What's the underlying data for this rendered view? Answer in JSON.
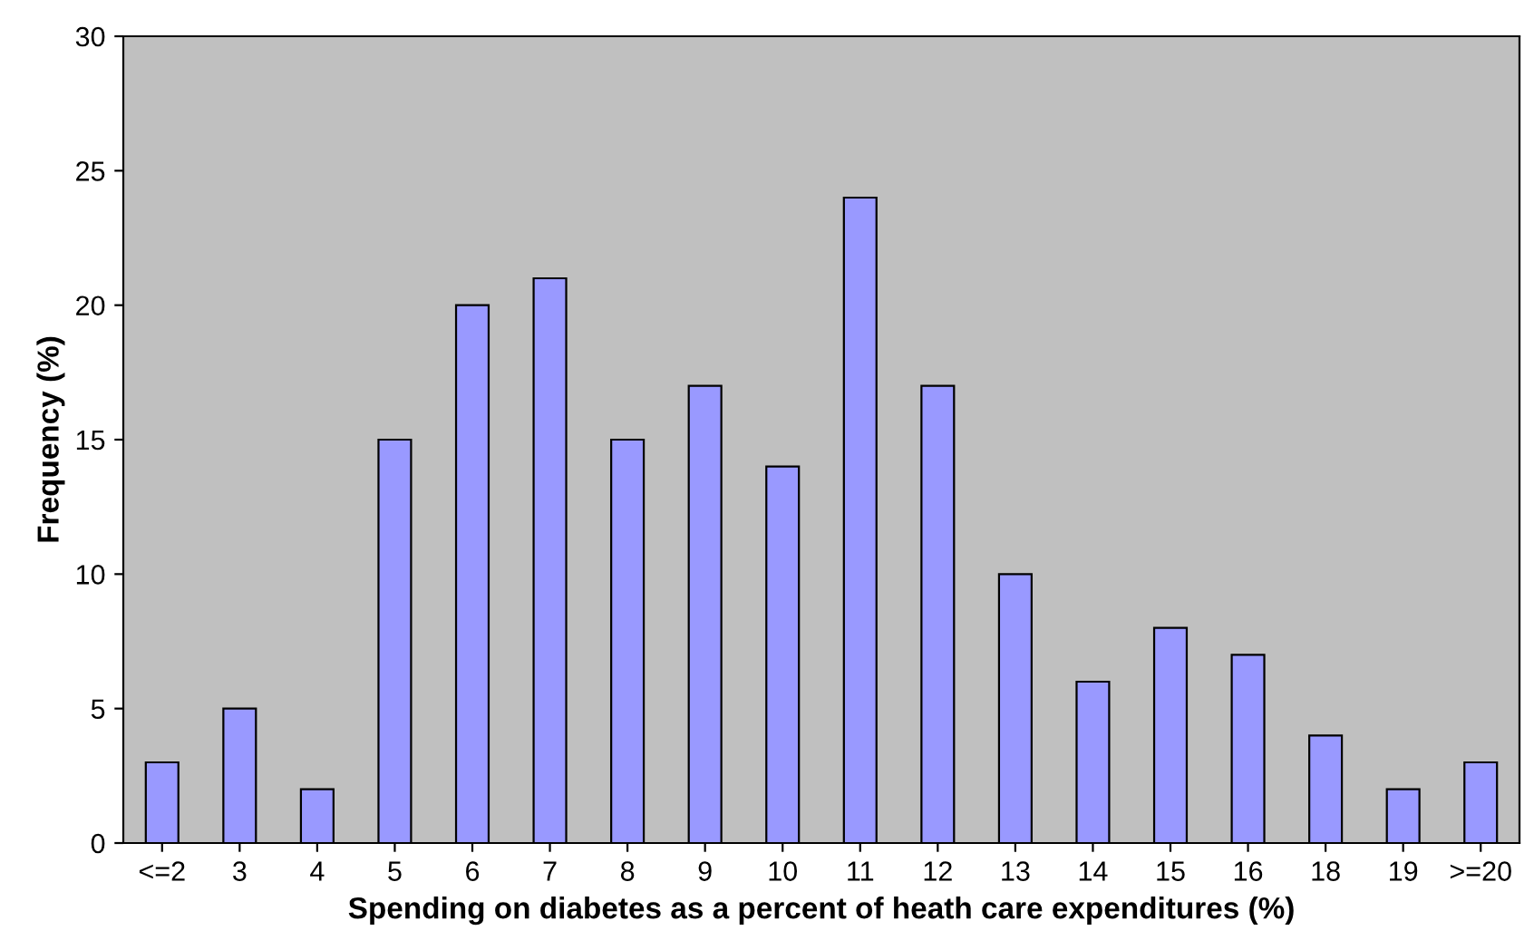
{
  "chart_data": {
    "type": "bar",
    "xlabel": "Spending on diabetes as a percent of heath care expenditures (%)",
    "ylabel": "Frequency (%)",
    "categories": [
      "<=2",
      "3",
      "4",
      "5",
      "6",
      "7",
      "8",
      "9",
      "10",
      "11",
      "12",
      "13",
      "14",
      "15",
      "16",
      "18",
      "19",
      ">=20"
    ],
    "values": [
      3,
      5,
      2,
      15,
      20,
      21,
      15,
      17,
      14,
      24,
      17,
      10,
      6,
      8,
      7,
      4,
      2,
      3
    ],
    "color": "#9999ff",
    "ylim": [
      0,
      30
    ],
    "yticks": [
      0,
      5,
      10,
      15,
      20,
      25,
      30
    ],
    "grid": false,
    "legend": false
  }
}
